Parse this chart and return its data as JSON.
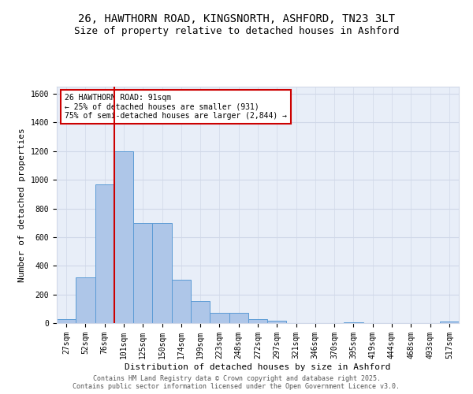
{
  "title_line1": "26, HAWTHORN ROAD, KINGSNORTH, ASHFORD, TN23 3LT",
  "title_line2": "Size of property relative to detached houses in Ashford",
  "xlabel": "Distribution of detached houses by size in Ashford",
  "ylabel": "Number of detached properties",
  "footer_line1": "Contains HM Land Registry data © Crown copyright and database right 2025.",
  "footer_line2": "Contains public sector information licensed under the Open Government Licence v3.0.",
  "bin_labels": [
    "27sqm",
    "52sqm",
    "76sqm",
    "101sqm",
    "125sqm",
    "150sqm",
    "174sqm",
    "199sqm",
    "223sqm",
    "248sqm",
    "272sqm",
    "297sqm",
    "321sqm",
    "346sqm",
    "370sqm",
    "395sqm",
    "419sqm",
    "444sqm",
    "468sqm",
    "493sqm",
    "517sqm"
  ],
  "bar_values": [
    25,
    320,
    970,
    1200,
    700,
    700,
    300,
    155,
    70,
    70,
    25,
    15,
    0,
    0,
    0,
    5,
    0,
    0,
    0,
    0,
    10
  ],
  "bar_color": "#aec6e8",
  "bar_edge_color": "#5b9bd5",
  "bar_width": 1.0,
  "vline_color": "#cc0000",
  "annotation_line1": "26 HAWTHORN ROAD: 91sqm",
  "annotation_line2": "← 25% of detached houses are smaller (931)",
  "annotation_line3": "75% of semi-detached houses are larger (2,844) →",
  "annotation_box_color": "#cc0000",
  "annotation_bg": "white",
  "ylim": [
    0,
    1650
  ],
  "yticks": [
    0,
    200,
    400,
    600,
    800,
    1000,
    1200,
    1400,
    1600
  ],
  "grid_color": "#d0d8e8",
  "bg_color": "#e8eef8",
  "title_fontsize": 10,
  "subtitle_fontsize": 9,
  "axis_label_fontsize": 8,
  "tick_fontsize": 7,
  "annotation_fontsize": 7,
  "footer_fontsize": 6
}
